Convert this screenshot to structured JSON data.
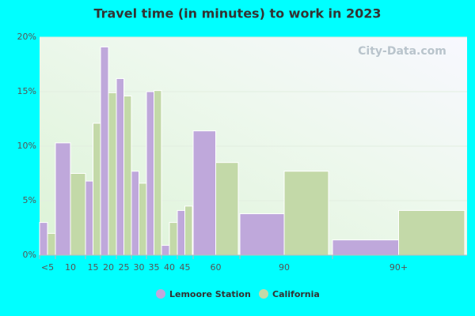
{
  "chart_data": {
    "type": "bar",
    "title": "Travel time (in minutes) to work in 2023",
    "watermark": "City-Data.com",
    "categories": [
      "<5",
      "10",
      "15",
      "20",
      "25",
      "30",
      "35",
      "40",
      "45",
      "60",
      "90",
      "90+"
    ],
    "series": [
      {
        "name": "Lemoore Station",
        "color": "#bfa8db",
        "values": [
          3.0,
          10.3,
          6.8,
          19.1,
          16.2,
          7.7,
          15.0,
          0.9,
          4.1,
          11.4,
          3.8,
          1.4
        ]
      },
      {
        "name": "California",
        "color": "#c3d9a8",
        "values": [
          2.0,
          7.5,
          12.1,
          14.9,
          14.6,
          6.6,
          15.1,
          3.0,
          4.5,
          8.5,
          7.7,
          4.1
        ]
      }
    ],
    "ylim": [
      0,
      20
    ],
    "yticks": [
      {
        "value": 0,
        "label": "0%"
      },
      {
        "value": 5,
        "label": "5%"
      },
      {
        "value": 10,
        "label": "10%"
      },
      {
        "value": 15,
        "label": "15%"
      },
      {
        "value": 20,
        "label": "20%"
      }
    ],
    "grid": true
  }
}
